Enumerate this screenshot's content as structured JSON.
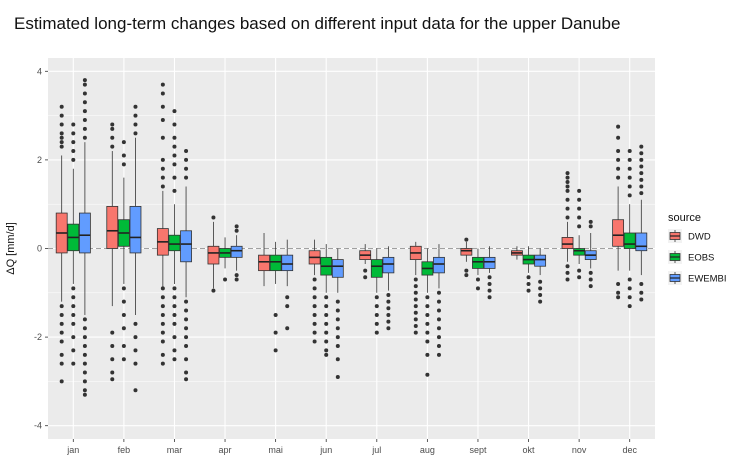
{
  "chart_data": {
    "type": "boxplot",
    "title": "Estimated long-term changes based on different input data for the upper Danube",
    "xlabel": "",
    "ylabel": "ΔQ [mm/d]",
    "ylim": [
      -4.3,
      4.3
    ],
    "yticks": [
      -4,
      -2,
      0,
      2,
      4
    ],
    "reference_line": 0,
    "legend": {
      "title": "source",
      "position": "right"
    },
    "categories": [
      "jan",
      "feb",
      "mar",
      "apr",
      "mai",
      "jun",
      "jul",
      "aug",
      "sept",
      "okt",
      "nov",
      "dec"
    ],
    "series": [
      {
        "name": "DWD",
        "color": "#f8766d",
        "boxes": [
          {
            "q1": -0.1,
            "median": 0.35,
            "q3": 0.8,
            "lower": -1.2,
            "upper": 2.1,
            "outliers": [
              3.2,
              3.0,
              2.8,
              2.6,
              2.5,
              2.4,
              2.3,
              -1.3,
              -1.5,
              -1.7,
              -1.9,
              -2.1,
              -2.4,
              -2.6,
              -3.0
            ]
          },
          {
            "q1": 0.0,
            "median": 0.4,
            "q3": 0.95,
            "lower": -1.3,
            "upper": 2.2,
            "outliers": [
              2.8,
              2.7,
              2.5,
              2.3,
              -1.9,
              -2.2,
              -2.5,
              -2.8,
              -2.95
            ]
          },
          {
            "q1": -0.15,
            "median": 0.15,
            "q3": 0.45,
            "lower": -0.9,
            "upper": 1.3,
            "outliers": [
              3.7,
              3.5,
              3.2,
              2.9,
              2.5,
              2.0,
              1.8,
              1.6,
              1.4,
              -0.9,
              -1.1,
              -1.3,
              -1.5,
              -1.7,
              -1.9,
              -2.1,
              -2.4,
              -2.6
            ]
          },
          {
            "q1": -0.35,
            "median": -0.1,
            "q3": 0.05,
            "lower": -0.9,
            "upper": 0.6,
            "outliers": [
              0.7,
              -0.95
            ]
          },
          {
            "q1": -0.5,
            "median": -0.3,
            "q3": -0.15,
            "lower": -0.85,
            "upper": 0.35,
            "outliers": []
          },
          {
            "q1": -0.35,
            "median": -0.2,
            "q3": -0.05,
            "lower": -0.6,
            "upper": 0.2,
            "outliers": [
              -0.7,
              -0.9,
              -1.1,
              -1.3,
              -1.5,
              -1.7,
              -1.9,
              -2.1
            ]
          },
          {
            "q1": -0.25,
            "median": -0.15,
            "q3": -0.05,
            "lower": -0.35,
            "upper": 0.1,
            "outliers": [
              -0.5,
              -0.65
            ]
          },
          {
            "q1": -0.25,
            "median": -0.1,
            "q3": 0.05,
            "lower": -0.6,
            "upper": 0.15,
            "outliers": [
              -0.7,
              -0.85,
              -1.0,
              -1.15,
              -1.3,
              -1.45,
              -1.6,
              -1.75,
              -1.9
            ]
          },
          {
            "q1": -0.15,
            "median": -0.05,
            "q3": 0.0,
            "lower": -0.3,
            "upper": 0.15,
            "outliers": [
              0.2,
              -0.5,
              -0.6
            ]
          },
          {
            "q1": -0.15,
            "median": -0.1,
            "q3": -0.05,
            "lower": -0.25,
            "upper": 0.05,
            "outliers": []
          },
          {
            "q1": 0.0,
            "median": 0.1,
            "q3": 0.25,
            "lower": -0.3,
            "upper": 0.6,
            "outliers": [
              1.7,
              1.6,
              1.5,
              1.4,
              1.3,
              1.1,
              0.9,
              0.7,
              -0.4,
              -0.55,
              -0.7
            ]
          },
          {
            "q1": 0.05,
            "median": 0.3,
            "q3": 0.65,
            "lower": -0.5,
            "upper": 1.4,
            "outliers": [
              2.75,
              2.5,
              2.2,
              2.0,
              1.8,
              1.6,
              -0.8,
              -1.0,
              -1.1
            ]
          }
        ]
      },
      {
        "name": "EOBS",
        "color": "#00ba38",
        "boxes": [
          {
            "q1": -0.05,
            "median": 0.25,
            "q3": 0.55,
            "lower": -0.8,
            "upper": 1.8,
            "outliers": [
              2.8,
              2.6,
              2.4,
              2.2,
              2.0,
              -0.9,
              -1.1,
              -1.3,
              -1.5,
              -1.7,
              -2.0,
              -2.3,
              -2.6
            ]
          },
          {
            "q1": 0.05,
            "median": 0.35,
            "q3": 0.65,
            "lower": -0.8,
            "upper": 1.6,
            "outliers": [
              2.4,
              2.1,
              1.9,
              -0.9,
              -1.2,
              -1.5,
              -1.8,
              -2.2,
              -2.5
            ]
          },
          {
            "q1": -0.05,
            "median": 0.1,
            "q3": 0.3,
            "lower": -0.8,
            "upper": 1.0,
            "outliers": [
              3.1,
              2.8,
              2.5,
              2.3,
              2.1,
              1.9,
              1.6,
              1.3,
              -0.9,
              -1.1,
              -1.3,
              -1.5,
              -1.7,
              -2.0,
              -2.3,
              -2.5
            ]
          },
          {
            "q1": -0.2,
            "median": -0.1,
            "q3": 0.0,
            "lower": -0.45,
            "upper": 0.25,
            "outliers": [
              -0.7
            ]
          },
          {
            "q1": -0.5,
            "median": -0.3,
            "q3": -0.15,
            "lower": -0.8,
            "upper": 0.15,
            "outliers": [
              -1.5,
              -1.9,
              -2.3
            ]
          },
          {
            "q1": -0.6,
            "median": -0.4,
            "q3": -0.2,
            "lower": -1.0,
            "upper": 0.1,
            "outliers": [
              -1.1,
              -1.3,
              -1.5,
              -1.7,
              -1.9,
              -2.1,
              -2.3,
              -2.4
            ]
          },
          {
            "q1": -0.65,
            "median": -0.4,
            "q3": -0.25,
            "lower": -1.0,
            "upper": 0.0,
            "outliers": [
              -1.1,
              -1.3,
              -1.5,
              -1.7,
              -1.9
            ]
          },
          {
            "q1": -0.6,
            "median": -0.45,
            "q3": -0.3,
            "lower": -1.0,
            "upper": 0.0,
            "outliers": [
              -1.1,
              -1.3,
              -1.5,
              -1.7,
              -1.9,
              -2.1,
              -2.4,
              -2.85
            ]
          },
          {
            "q1": -0.45,
            "median": -0.3,
            "q3": -0.2,
            "lower": -0.6,
            "upper": 0.0,
            "outliers": [
              -0.7,
              -0.9
            ]
          },
          {
            "q1": -0.35,
            "median": -0.25,
            "q3": -0.15,
            "lower": -0.55,
            "upper": 0.05,
            "outliers": [
              -0.65,
              -0.8,
              -0.95
            ]
          },
          {
            "q1": -0.15,
            "median": -0.05,
            "q3": 0.0,
            "lower": -0.35,
            "upper": 0.3,
            "outliers": [
              1.3,
              1.1,
              0.9,
              0.7,
              0.5,
              -0.5,
              -0.65
            ]
          },
          {
            "q1": 0.0,
            "median": 0.1,
            "q3": 0.35,
            "lower": -0.5,
            "upper": 1.0,
            "outliers": [
              2.2,
              2.0,
              1.8,
              1.6,
              1.4,
              1.2,
              -0.7,
              -0.9,
              -1.1,
              -1.3
            ]
          }
        ]
      },
      {
        "name": "EWEMBI",
        "color": "#619cff",
        "boxes": [
          {
            "q1": -0.1,
            "median": 0.3,
            "q3": 0.8,
            "lower": -1.5,
            "upper": 2.4,
            "outliers": [
              3.8,
              3.7,
              3.5,
              3.3,
              3.1,
              2.9,
              2.7,
              2.5,
              -1.6,
              -1.8,
              -2.0,
              -2.2,
              -2.4,
              -2.6,
              -2.8,
              -3.0,
              -3.2,
              -3.3
            ]
          },
          {
            "q1": -0.1,
            "median": 0.25,
            "q3": 0.95,
            "lower": -1.5,
            "upper": 2.5,
            "outliers": [
              3.2,
              3.0,
              2.8,
              2.6,
              -1.7,
              -2.0,
              -2.3,
              -2.6,
              -3.2
            ]
          },
          {
            "q1": -0.3,
            "median": 0.1,
            "q3": 0.4,
            "lower": -1.1,
            "upper": 1.4,
            "outliers": [
              2.2,
              2.0,
              1.8,
              1.6,
              -1.2,
              -1.4,
              -1.6,
              -1.8,
              -2.0,
              -2.2,
              -2.5,
              -2.8,
              -2.95
            ]
          },
          {
            "q1": -0.2,
            "median": -0.05,
            "q3": 0.05,
            "lower": -0.5,
            "upper": 0.3,
            "outliers": [
              0.5,
              0.4,
              -0.6,
              -0.7
            ]
          },
          {
            "q1": -0.5,
            "median": -0.35,
            "q3": -0.15,
            "lower": -0.85,
            "upper": 0.2,
            "outliers": [
              -1.1,
              -1.3,
              -1.8
            ]
          },
          {
            "q1": -0.65,
            "median": -0.4,
            "q3": -0.25,
            "lower": -1.0,
            "upper": 0.0,
            "outliers": [
              -1.2,
              -1.4,
              -1.6,
              -1.8,
              -2.0,
              -2.2,
              -2.5,
              -2.9
            ]
          },
          {
            "q1": -0.55,
            "median": -0.35,
            "q3": -0.2,
            "lower": -0.95,
            "upper": 0.05,
            "outliers": [
              -1.05,
              -1.2,
              -1.35,
              -1.5,
              -1.65,
              -1.8
            ]
          },
          {
            "q1": -0.55,
            "median": -0.35,
            "q3": -0.2,
            "lower": -0.9,
            "upper": 0.1,
            "outliers": [
              -1.0,
              -1.2,
              -1.4,
              -1.6,
              -1.8,
              -2.0,
              -2.2,
              -2.4
            ]
          },
          {
            "q1": -0.45,
            "median": -0.3,
            "q3": -0.2,
            "lower": -0.55,
            "upper": 0.05,
            "outliers": [
              -0.65,
              -0.8,
              -0.95,
              -1.1
            ]
          },
          {
            "q1": -0.4,
            "median": -0.25,
            "q3": -0.15,
            "lower": -0.6,
            "upper": 0.0,
            "outliers": [
              -0.75,
              -0.9,
              -1.05,
              -1.2
            ]
          },
          {
            "q1": -0.25,
            "median": -0.15,
            "q3": -0.05,
            "lower": -0.45,
            "upper": 0.35,
            "outliers": [
              0.6,
              0.5,
              -0.55,
              -0.7,
              -0.85
            ]
          },
          {
            "q1": -0.05,
            "median": 0.05,
            "q3": 0.35,
            "lower": -0.6,
            "upper": 1.1,
            "outliers": [
              2.3,
              2.15,
              2.0,
              1.85,
              1.7,
              1.55,
              1.4,
              1.25,
              -0.8,
              -1.0,
              -1.15
            ]
          }
        ]
      }
    ]
  }
}
